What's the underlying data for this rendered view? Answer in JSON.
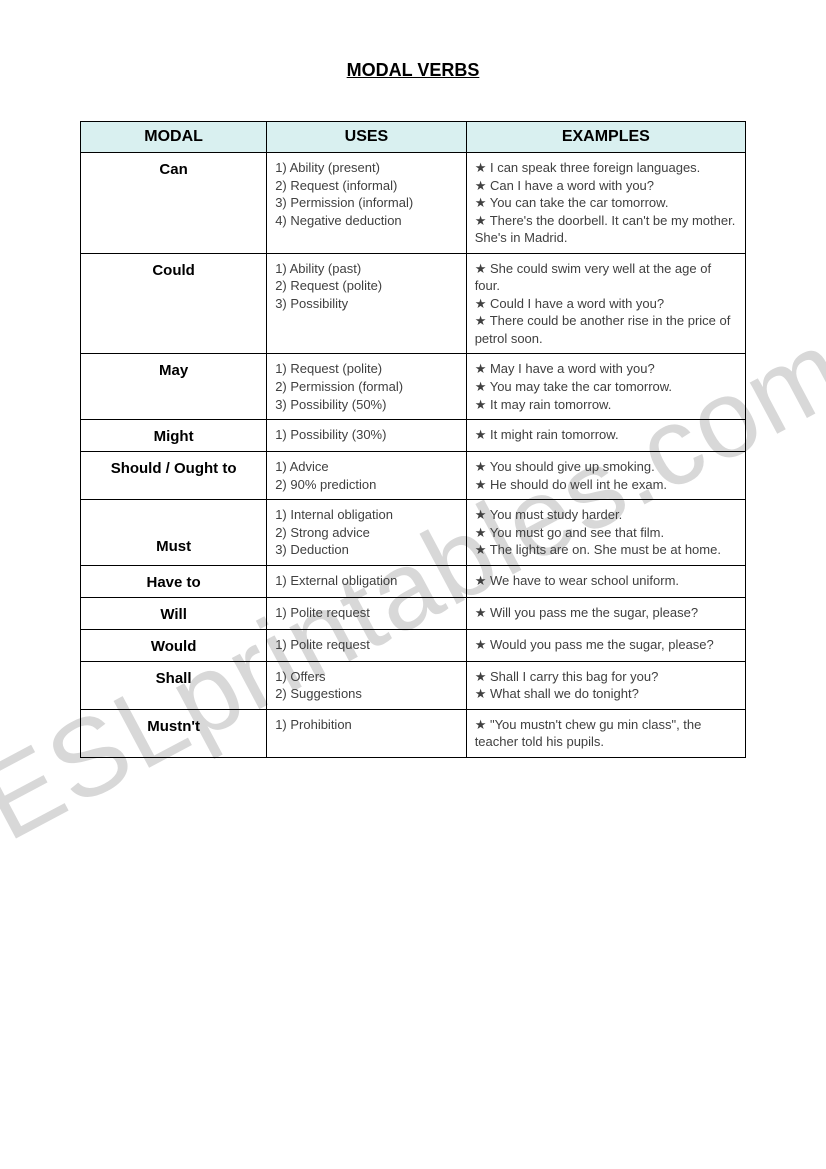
{
  "title": "MODAL VERBS",
  "watermark": "ESLprintables.com",
  "colors": {
    "header_bg": "#d9f0f0",
    "border": "#000000",
    "text": "#404040",
    "watermark": "#d8d8d8"
  },
  "table": {
    "columns": [
      "MODAL",
      "USES",
      "EXAMPLES"
    ],
    "rows": [
      {
        "modal": "Can",
        "uses": [
          "1)  Ability (present)",
          "2)  Request (informal)",
          "3)  Permission (informal)",
          "4)  Negative deduction"
        ],
        "examples": [
          "I can speak three foreign languages.",
          "Can I have a word with you?",
          "You can take the car tomorrow.",
          "There's the doorbell. It can't be my mother. She's in Madrid."
        ]
      },
      {
        "modal": "Could",
        "uses": [
          "1)  Ability (past)",
          "2)  Request (polite)",
          "3)  Possibility"
        ],
        "examples": [
          "She could swim very well at the age of four.",
          "Could I have a word with you?",
          "There could be another rise in the price of petrol soon."
        ]
      },
      {
        "modal": "May",
        "uses": [
          "1)  Request (polite)",
          "2)  Permission (formal)",
          "3)  Possibility (50%)"
        ],
        "examples": [
          "May I have a word with you?",
          "You may take the car tomorrow.",
          "It may rain tomorrow."
        ]
      },
      {
        "modal": "Might",
        "uses": [
          "1)  Possibility (30%)"
        ],
        "examples": [
          "It might rain tomorrow."
        ]
      },
      {
        "modal": "Should / Ought to",
        "uses": [
          "1)  Advice",
          "2)  90% prediction"
        ],
        "examples": [
          "You should give up smoking.",
          "He should do well int he exam."
        ]
      },
      {
        "modal": "Must",
        "modal_vcenter": true,
        "uses": [
          "1)  Internal obligation",
          "2)  Strong advice",
          "3)  Deduction"
        ],
        "examples": [
          "You must study harder.",
          "You must go and see that film.",
          "The lights are on. She must be at home."
        ]
      },
      {
        "modal": "Have to",
        "uses": [
          "1)  External obligation"
        ],
        "examples": [
          "We have to wear school uniform."
        ]
      },
      {
        "modal": "Will",
        "uses": [
          "1)  Polite request"
        ],
        "examples": [
          "Will you pass me the sugar, please?"
        ]
      },
      {
        "modal": "Would",
        "uses": [
          "1)  Polite request"
        ],
        "examples": [
          "Would you pass me the sugar, please?"
        ]
      },
      {
        "modal": "Shall",
        "uses": [
          "1)  Offers",
          "2)  Suggestions"
        ],
        "examples": [
          "Shall I carry this bag for you?",
          "What shall we do tonight?"
        ]
      },
      {
        "modal": "Mustn't",
        "uses": [
          "1)  Prohibition"
        ],
        "examples": [
          "\"You mustn't chew gu min class\", the teacher told his pupils."
        ]
      }
    ],
    "star_glyph": "★"
  }
}
